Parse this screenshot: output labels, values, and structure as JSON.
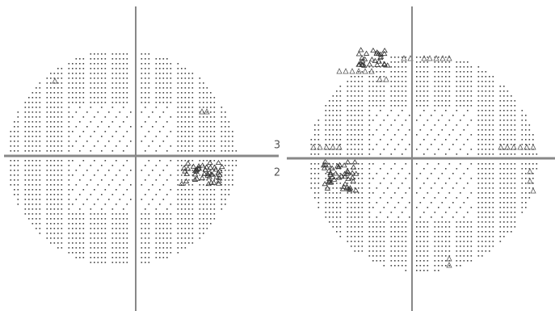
{
  "labels": {
    "upper": "3",
    "lower": "2"
  }
}
